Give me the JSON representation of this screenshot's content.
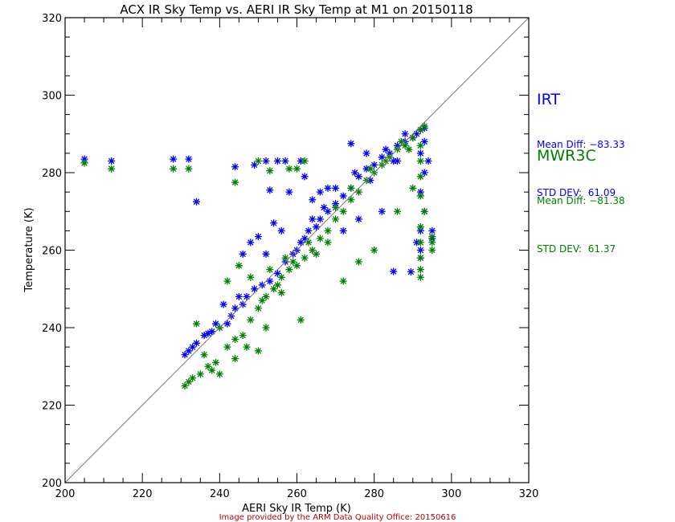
{
  "chart_data": {
    "type": "scatter",
    "title": "ACX IR Sky Temp vs. AERI IR Sky Temp at M1 on 20150118",
    "xlabel": "AERI Sky IR Temp (K)",
    "ylabel": "Temperature (K)",
    "xlim": [
      200,
      320
    ],
    "ylim": [
      200,
      320
    ],
    "xticks": [
      "200",
      "220",
      "240",
      "260",
      "280",
      "300",
      "320"
    ],
    "yticks": [
      "200",
      "220",
      "240",
      "260",
      "280",
      "300",
      "320"
    ],
    "reference_line": "1:1",
    "grid": false,
    "credit": "Image provided by the ARM Data Quality Office: 20150616",
    "series": [
      {
        "name": "IRT",
        "color": "#0000ff",
        "stats": {
          "mean_label": "Mean Diff:",
          "mean": "−83.33",
          "std_label": "STD DEV:",
          "std": "61.09"
        },
        "points": [
          [
            205,
            283.5
          ],
          [
            212,
            283
          ],
          [
            228,
            283.5
          ],
          [
            232,
            283.5
          ],
          [
            234,
            272.5
          ],
          [
            244,
            281.5
          ],
          [
            249,
            282
          ],
          [
            252,
            283
          ],
          [
            253,
            275.5
          ],
          [
            255,
            283
          ],
          [
            257,
            283
          ],
          [
            261,
            283
          ],
          [
            274,
            287.5
          ],
          [
            286,
            283
          ],
          [
            262,
            279
          ],
          [
            289.5,
            254.4
          ],
          [
            285,
            254.5
          ],
          [
            231,
            233
          ],
          [
            232,
            234
          ],
          [
            233,
            235
          ],
          [
            234,
            236
          ],
          [
            236,
            238
          ],
          [
            237,
            238.5
          ],
          [
            238,
            239
          ],
          [
            240,
            240
          ],
          [
            242,
            241
          ],
          [
            244,
            245
          ],
          [
            246,
            246
          ],
          [
            247,
            248
          ],
          [
            249,
            250
          ],
          [
            251,
            251
          ],
          [
            253,
            252
          ],
          [
            255,
            254
          ],
          [
            257,
            257
          ],
          [
            259,
            259
          ],
          [
            260,
            260
          ],
          [
            262,
            263
          ],
          [
            263,
            265
          ],
          [
            265,
            266
          ],
          [
            266,
            268
          ],
          [
            268,
            270
          ],
          [
            270,
            272
          ],
          [
            272,
            274
          ],
          [
            274,
            276
          ],
          [
            276,
            279
          ],
          [
            278,
            281
          ],
          [
            280,
            282
          ],
          [
            282,
            284
          ],
          [
            284,
            285
          ],
          [
            286,
            287
          ],
          [
            288,
            288
          ],
          [
            290,
            289
          ],
          [
            291,
            290
          ],
          [
            292,
            291
          ],
          [
            293,
            291.5
          ],
          [
            248,
            262
          ],
          [
            250,
            263.5
          ],
          [
            252,
            259
          ],
          [
            254,
            267
          ],
          [
            256,
            265
          ],
          [
            258,
            275
          ],
          [
            264,
            273
          ],
          [
            266,
            275
          ],
          [
            268,
            276
          ],
          [
            272,
            265
          ],
          [
            276,
            268
          ],
          [
            282,
            270
          ],
          [
            246,
            259
          ],
          [
            241,
            246
          ],
          [
            239,
            241
          ],
          [
            243,
            243
          ],
          [
            270,
            276
          ],
          [
            278,
            285
          ],
          [
            283,
            286
          ],
          [
            288,
            290
          ],
          [
            261,
            262
          ],
          [
            264,
            268
          ],
          [
            267,
            271
          ],
          [
            275,
            280
          ],
          [
            279,
            278
          ],
          [
            285,
            283
          ],
          [
            245,
            248
          ],
          [
            292,
            285
          ],
          [
            293,
            280
          ],
          [
            292,
            275
          ],
          [
            293,
            270
          ],
          [
            292,
            265
          ],
          [
            291,
            262
          ],
          [
            295,
            265
          ],
          [
            295,
            263
          ],
          [
            292,
            260
          ],
          [
            292,
            258
          ],
          [
            293,
            288
          ],
          [
            294,
            283
          ]
        ]
      },
      {
        "name": "MWR3C",
        "color": "#008000",
        "stats": {
          "mean_label": "Mean Diff:",
          "mean": "−81.38",
          "std_label": "STD DEV:",
          "std": "61.37"
        },
        "points": [
          [
            205,
            282.5
          ],
          [
            212,
            281
          ],
          [
            228,
            281
          ],
          [
            232,
            281
          ],
          [
            244,
            277.5
          ],
          [
            250,
            283
          ],
          [
            253,
            280.5
          ],
          [
            258,
            281
          ],
          [
            260,
            281
          ],
          [
            262,
            283
          ],
          [
            231,
            225
          ],
          [
            232,
            226
          ],
          [
            233,
            227
          ],
          [
            235,
            228
          ],
          [
            237,
            230
          ],
          [
            238,
            229
          ],
          [
            239,
            231
          ],
          [
            240,
            228
          ],
          [
            242,
            235
          ],
          [
            244,
            237
          ],
          [
            246,
            238
          ],
          [
            248,
            242
          ],
          [
            250,
            245
          ],
          [
            252,
            248
          ],
          [
            254,
            250
          ],
          [
            256,
            253
          ],
          [
            258,
            255
          ],
          [
            260,
            256
          ],
          [
            262,
            258
          ],
          [
            264,
            260
          ],
          [
            266,
            263
          ],
          [
            268,
            265
          ],
          [
            270,
            268
          ],
          [
            272,
            270
          ],
          [
            274,
            273
          ],
          [
            276,
            275
          ],
          [
            278,
            278
          ],
          [
            280,
            280
          ],
          [
            282,
            282
          ],
          [
            284,
            284
          ],
          [
            286,
            286
          ],
          [
            288,
            287
          ],
          [
            290,
            289
          ],
          [
            292,
            291
          ],
          [
            293,
            292
          ],
          [
            242,
            252
          ],
          [
            245,
            256
          ],
          [
            248,
            253
          ],
          [
            250,
            234
          ],
          [
            252,
            240
          ],
          [
            256,
            249
          ],
          [
            261,
            242
          ],
          [
            268,
            262
          ],
          [
            272,
            252
          ],
          [
            276,
            257
          ],
          [
            280,
            260
          ],
          [
            286,
            270
          ],
          [
            290,
            276
          ],
          [
            244,
            232
          ],
          [
            247,
            235
          ],
          [
            236,
            233
          ],
          [
            234,
            241
          ],
          [
            240,
            240
          ],
          [
            253,
            255
          ],
          [
            257,
            258
          ],
          [
            263,
            262
          ],
          [
            265,
            259
          ],
          [
            270,
            271
          ],
          [
            274,
            276
          ],
          [
            279,
            281
          ],
          [
            283,
            283
          ],
          [
            287,
            288
          ],
          [
            251,
            247
          ],
          [
            255,
            251
          ],
          [
            259,
            257
          ],
          [
            289,
            286
          ],
          [
            292,
            287
          ],
          [
            292,
            283
          ],
          [
            292,
            279
          ],
          [
            292,
            274
          ],
          [
            293,
            270
          ],
          [
            292,
            266
          ],
          [
            292,
            262
          ],
          [
            292,
            258
          ],
          [
            292,
            255
          ],
          [
            292,
            253
          ],
          [
            295,
            262
          ],
          [
            295,
            260
          ],
          [
            295,
            263.5
          ]
        ]
      }
    ]
  }
}
